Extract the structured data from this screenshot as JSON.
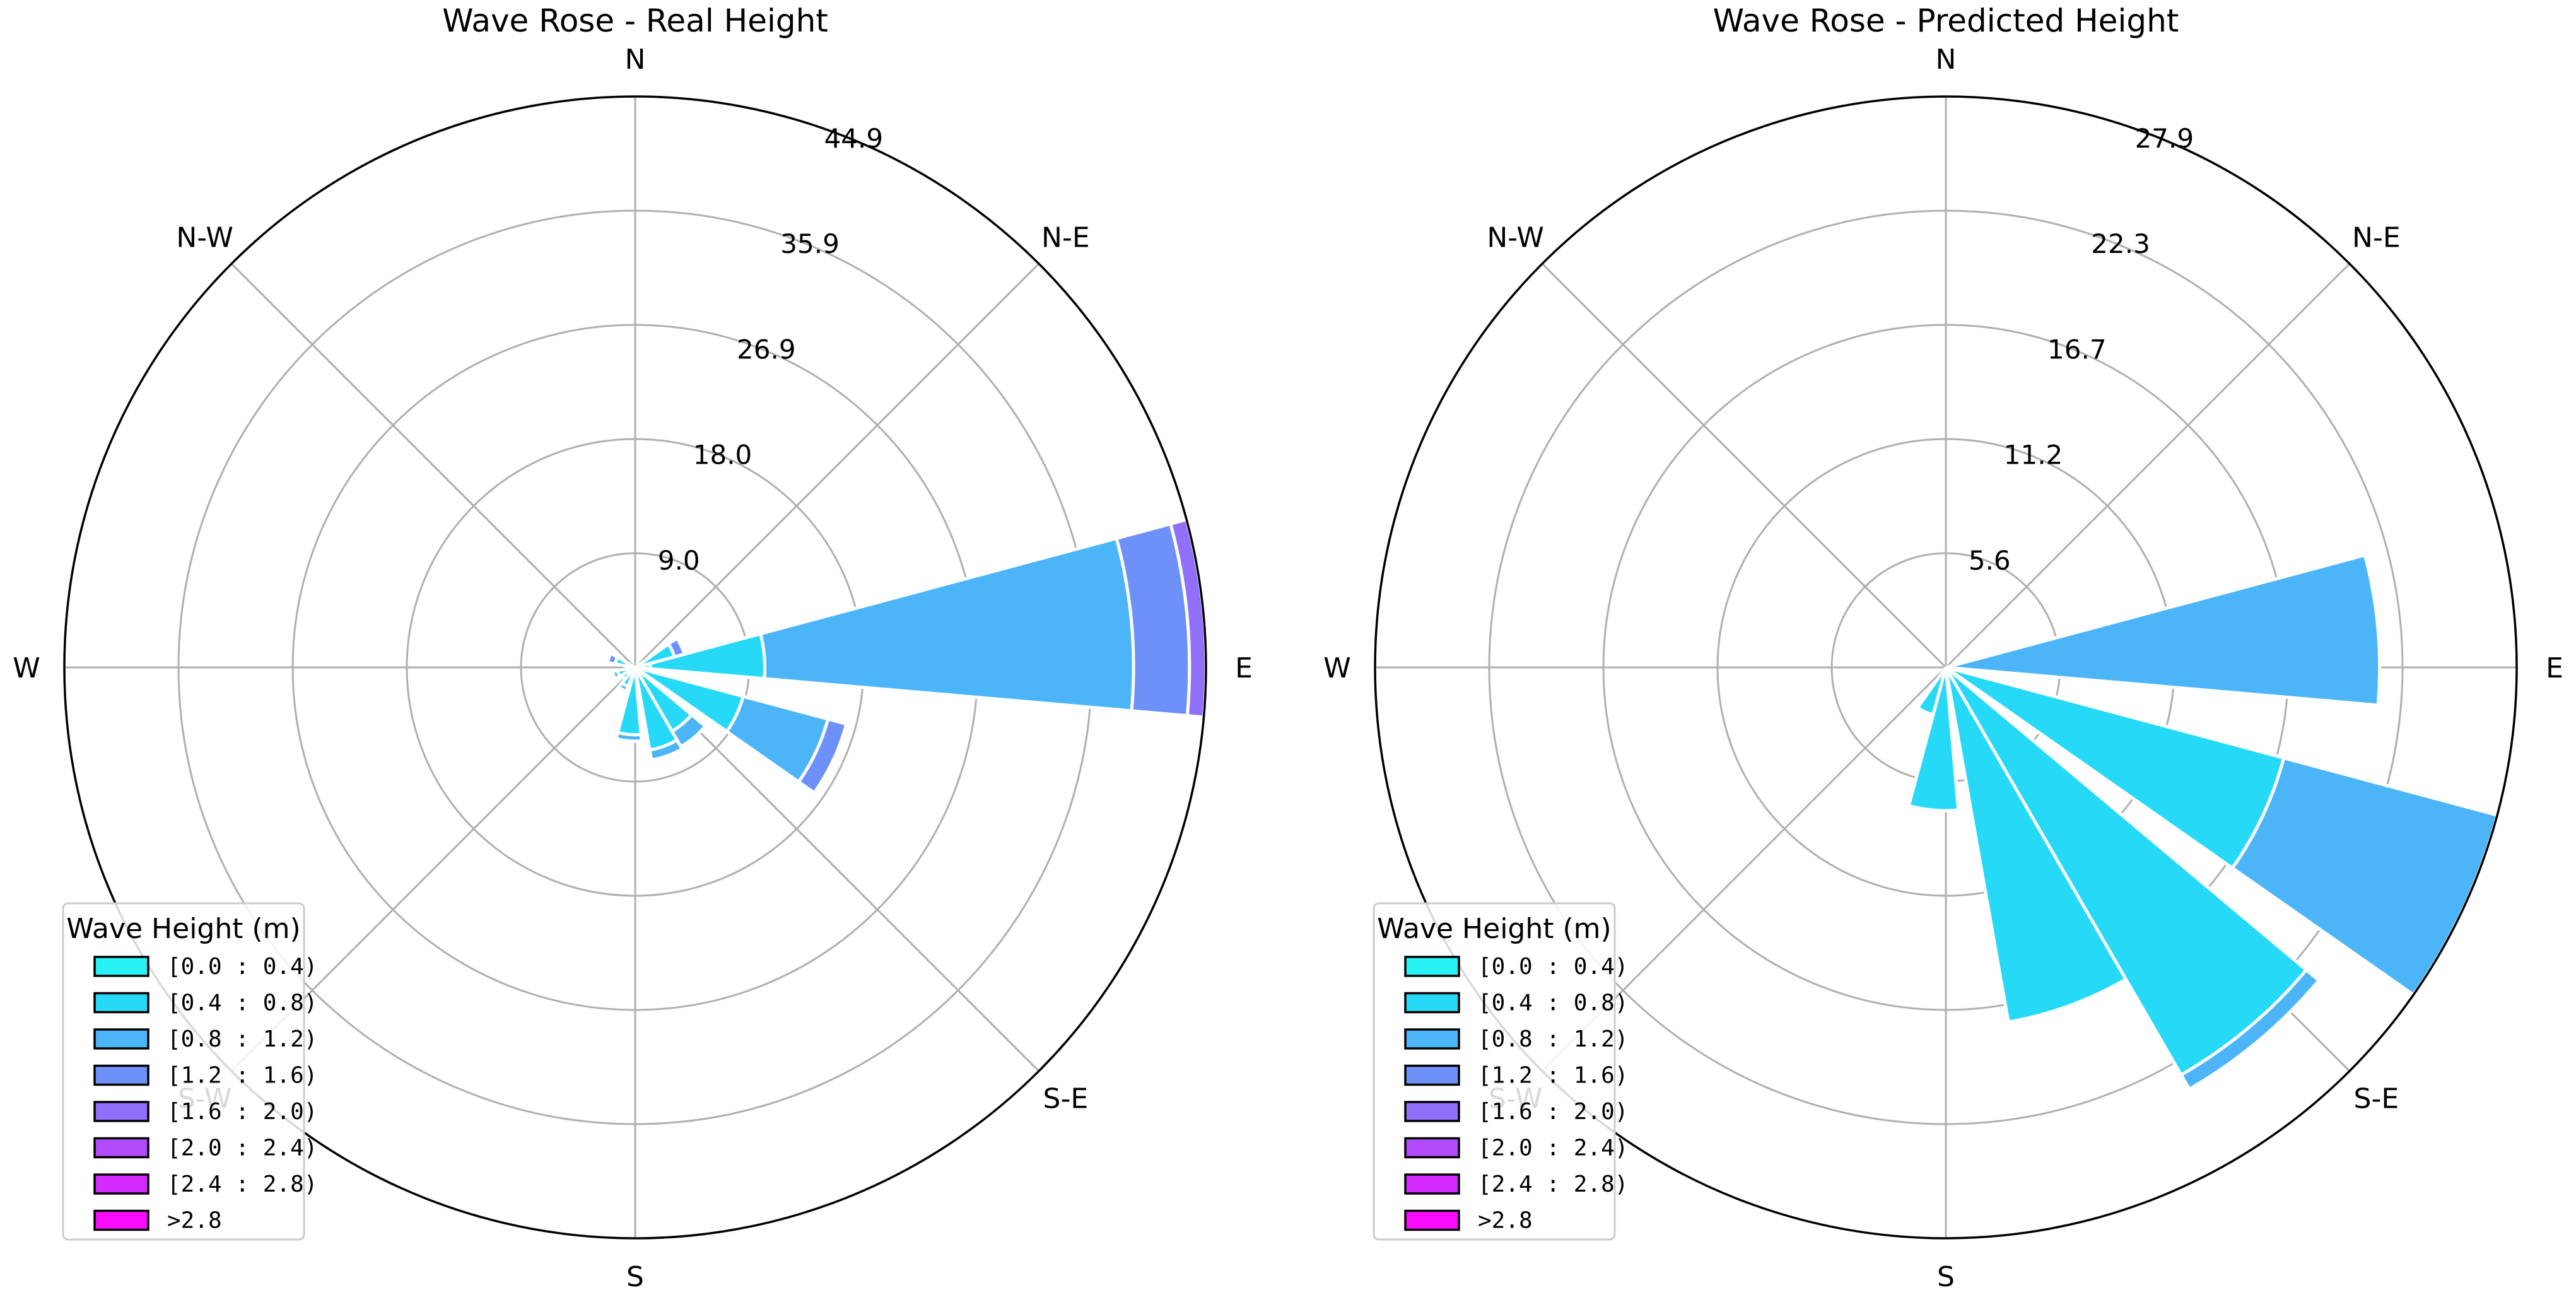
{
  "chart_data": [
    {
      "type": "wind-rose",
      "title": "Wave Rose - Real Height",
      "directions": [
        "E",
        "N-E",
        "N",
        "N-W",
        "W",
        "S-W",
        "S",
        "S-E"
      ],
      "radial_ticks": [
        "9.0",
        "18.0",
        "26.9",
        "35.9",
        "44.9"
      ],
      "rmax": 44.9,
      "sector_width_deg": 20,
      "sectors": [
        {
          "angle_deg": 5,
          "stack": [
            {
              "bin": 0,
              "r": 1.2
            },
            {
              "bin": 1,
              "r": 10.2
            },
            {
              "bin": 2,
              "r": 39.2
            },
            {
              "bin": 3,
              "r": 43.6
            },
            {
              "bin": 4,
              "r": 44.9
            }
          ]
        },
        {
          "angle_deg": 25,
          "stack": [
            {
              "bin": 1,
              "r": 3.2
            },
            {
              "bin": 3,
              "r": 4.0
            }
          ]
        },
        {
          "angle_deg": 160,
          "stack": [
            {
              "bin": 1,
              "r": 1.6
            },
            {
              "bin": 3,
              "r": 2.2
            }
          ]
        },
        {
          "angle_deg": 200,
          "stack": [
            {
              "bin": 1,
              "r": 1.4
            },
            {
              "bin": 2,
              "r": 1.8
            }
          ]
        },
        {
          "angle_deg": 220,
          "stack": [
            {
              "bin": 1,
              "r": 1.2
            }
          ]
        },
        {
          "angle_deg": 240,
          "stack": [
            {
              "bin": 1,
              "r": 1.6
            },
            {
              "bin": 2,
              "r": 2.0
            }
          ]
        },
        {
          "angle_deg": 265,
          "stack": [
            {
              "bin": 1,
              "r": 5.3
            },
            {
              "bin": 2,
              "r": 5.8
            }
          ]
        },
        {
          "angle_deg": 290,
          "stack": [
            {
              "bin": 1,
              "r": 6.6
            },
            {
              "bin": 2,
              "r": 7.4
            }
          ]
        },
        {
          "angle_deg": 310,
          "stack": [
            {
              "bin": 1,
              "r": 5.8
            },
            {
              "bin": 2,
              "r": 7.2
            }
          ]
        },
        {
          "angle_deg": 335,
          "stack": [
            {
              "bin": 1,
              "r": 8.8
            },
            {
              "bin": 2,
              "r": 15.7
            },
            {
              "bin": 3,
              "r": 17.2
            }
          ]
        }
      ]
    },
    {
      "type": "wind-rose",
      "title": "Wave Rose - Predicted Height",
      "directions": [
        "E",
        "N-E",
        "N",
        "N-W",
        "W",
        "S-W",
        "S",
        "S-E"
      ],
      "radial_ticks": [
        "5.6",
        "11.2",
        "16.7",
        "22.3",
        "27.9"
      ],
      "rmax": 27.9,
      "sector_width_deg": 20,
      "sectors": [
        {
          "angle_deg": 5,
          "stack": [
            {
              "bin": 2,
              "r": 21.2
            }
          ]
        },
        {
          "angle_deg": 245,
          "stack": [
            {
              "bin": 1,
              "r": 2.4
            }
          ]
        },
        {
          "angle_deg": 265,
          "stack": [
            {
              "bin": 1,
              "r": 7.0
            }
          ]
        },
        {
          "angle_deg": 290,
          "stack": [
            {
              "bin": 1,
              "r": 17.6
            }
          ]
        },
        {
          "angle_deg": 310,
          "stack": [
            {
              "bin": 1,
              "r": 23.0
            },
            {
              "bin": 2,
              "r": 23.8
            }
          ]
        },
        {
          "angle_deg": 335,
          "stack": [
            {
              "bin": 1,
              "r": 17.1
            },
            {
              "bin": 2,
              "r": 27.9
            }
          ]
        }
      ]
    }
  ],
  "legend": {
    "title": "Wave Height (m)",
    "placement": "lower-left",
    "items": [
      {
        "label": "[0.0 : 0.4)",
        "color": "#28f2f6"
      },
      {
        "label": "[0.4 : 0.8)",
        "color": "#26d9f7"
      },
      {
        "label": "[0.8 : 1.2)",
        "color": "#4cb5f8"
      },
      {
        "label": "[1.2 : 1.6)",
        "color": "#6d91f9"
      },
      {
        "label": "[1.6 : 2.0)",
        "color": "#9070fa"
      },
      {
        "label": "[2.0 : 2.4)",
        "color": "#b34bfb"
      },
      {
        "label": "[2.4 : 2.8)",
        "color": "#d42afd"
      },
      {
        "label": ">2.8",
        "color": "#f80cfe"
      }
    ]
  }
}
